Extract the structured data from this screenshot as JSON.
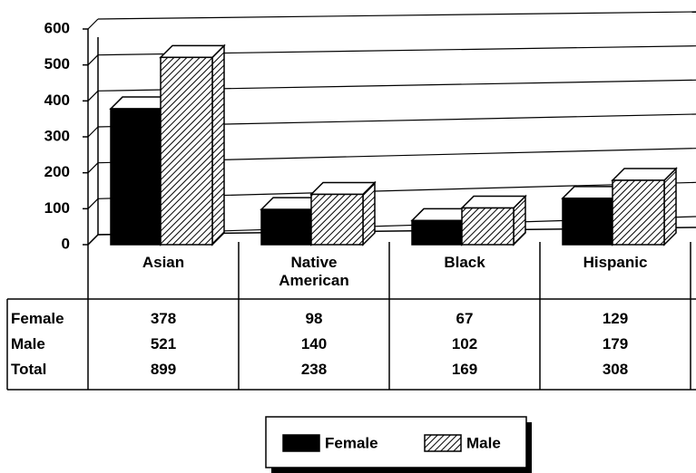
{
  "chart_data": {
    "type": "bar",
    "categories": [
      "Asian",
      "Native American",
      "Black",
      "Hispanic"
    ],
    "series": [
      {
        "name": "Female",
        "color": "#000000",
        "values": [
          378,
          98,
          67,
          129
        ]
      },
      {
        "name": "Male",
        "color": "hatch",
        "values": [
          521,
          140,
          102,
          179
        ]
      }
    ],
    "total_label": "Total",
    "totals": [
      899,
      238,
      169,
      308
    ],
    "ylim": [
      0,
      600
    ],
    "yticks": [
      0,
      100,
      200,
      300,
      400,
      500,
      600
    ],
    "grid": true,
    "legend": "bottom"
  }
}
